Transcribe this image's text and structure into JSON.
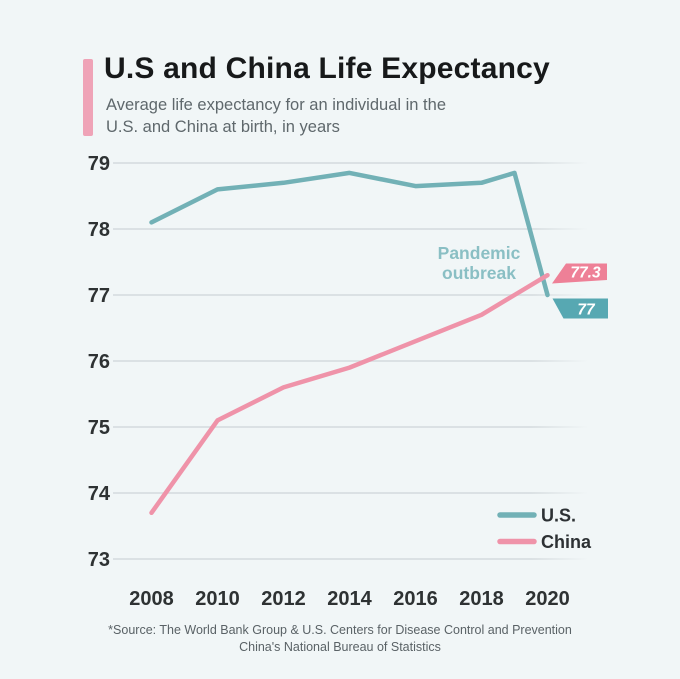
{
  "page": {
    "background": "#f1f6f7"
  },
  "header": {
    "title": "U.S and China Life Expectancy",
    "subtitle_line1": "Average life expectancy for an individual in the",
    "subtitle_line2": "U.S. and China at birth, in years",
    "accent_color": "#efa3b7"
  },
  "chart_data": {
    "type": "line",
    "title": "U.S and China Life Expectancy",
    "subtitle": "Average life expectancy for an individual in the U.S. and China at birth, in years",
    "x": [
      2008,
      2010,
      2012,
      2014,
      2016,
      2018,
      2019,
      2020
    ],
    "series": [
      {
        "name": "U.S.",
        "color": "#72b1b6",
        "values": [
          78.1,
          78.6,
          78.7,
          78.85,
          78.65,
          78.7,
          78.85,
          77.0
        ]
      },
      {
        "name": "China",
        "color": "#ef93a9",
        "values": [
          73.7,
          75.1,
          75.6,
          75.9,
          76.3,
          76.7,
          77.0,
          77.3
        ]
      }
    ],
    "xlim": [
      2008,
      2020
    ],
    "ylim": [
      73,
      79
    ],
    "x_ticks": [
      "2008",
      "2010",
      "2012",
      "2014",
      "2016",
      "2018",
      "2020"
    ],
    "y_ticks": [
      "79",
      "78",
      "77",
      "76",
      "75",
      "74",
      "73"
    ],
    "grid": "horizontal",
    "gridline_color": "#d7dde0",
    "tick_color": "#2e3233",
    "annotation": {
      "line1": "Pandemic",
      "line2": "outbreak",
      "color": "#8abfc4"
    },
    "end_labels": [
      {
        "series": "China",
        "text": "77.3",
        "bg": "#ee8097",
        "text_color": "#ffffff"
      },
      {
        "series": "U.S.",
        "text": "77",
        "bg": "#57a8b2",
        "text_color": "#ffffff"
      }
    ],
    "legend": {
      "position": "bottom-right",
      "items": [
        {
          "label": "U.S.",
          "color": "#72b1b6"
        },
        {
          "label": "China",
          "color": "#ef93a9"
        }
      ],
      "label_color": "#2d3134"
    }
  },
  "footer": {
    "source_line1": "*Source: The World Bank Group & U.S. Centers for Disease Control and Prevention",
    "source_line2": "China's National Bureau of Statistics"
  }
}
